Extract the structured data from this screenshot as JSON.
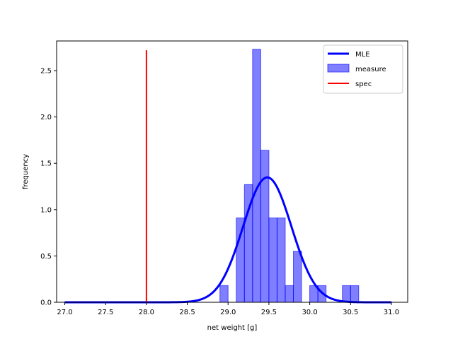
{
  "chart_data": {
    "type": "bar",
    "xlabel": "net weight [g]",
    "ylabel": "frequency",
    "xlim": [
      26.9,
      31.2
    ],
    "ylim": [
      0,
      2.82
    ],
    "x_ticks": [
      "27.0",
      "27.5",
      "28.0",
      "28.5",
      "29.0",
      "29.5",
      "30.0",
      "30.5",
      "31.0"
    ],
    "y_ticks": [
      "0.0",
      "0.5",
      "1.0",
      "1.5",
      "2.0",
      "2.5"
    ],
    "legend_position": "top-right",
    "series": [
      {
        "name": "measure",
        "type": "histogram",
        "color": "#0000ff",
        "bin_width": 0.1,
        "bins": [
          {
            "start": 28.9,
            "value": 0.18
          },
          {
            "start": 29.0,
            "value": 0.0
          },
          {
            "start": 29.1,
            "value": 0.91
          },
          {
            "start": 29.2,
            "value": 1.27
          },
          {
            "start": 29.3,
            "value": 2.73
          },
          {
            "start": 29.4,
            "value": 1.64
          },
          {
            "start": 29.5,
            "value": 0.91
          },
          {
            "start": 29.6,
            "value": 0.91
          },
          {
            "start": 29.7,
            "value": 0.18
          },
          {
            "start": 29.8,
            "value": 0.55
          },
          {
            "start": 29.9,
            "value": 0.0
          },
          {
            "start": 30.0,
            "value": 0.18
          },
          {
            "start": 30.1,
            "value": 0.18
          },
          {
            "start": 30.2,
            "value": 0.0
          },
          {
            "start": 30.3,
            "value": 0.0
          },
          {
            "start": 30.4,
            "value": 0.18
          },
          {
            "start": 30.5,
            "value": 0.18
          }
        ]
      },
      {
        "name": "MLE",
        "type": "normal-pdf-line",
        "color": "#0000ff",
        "mean": 29.48,
        "std": 0.296,
        "x_range": [
          27.0,
          31.0
        ]
      },
      {
        "name": "spec",
        "type": "vertical-line",
        "color": "#ff0000",
        "x": 28.0,
        "y_range": [
          0,
          2.72
        ]
      }
    ],
    "legend": [
      "MLE",
      "measure",
      "spec"
    ]
  }
}
